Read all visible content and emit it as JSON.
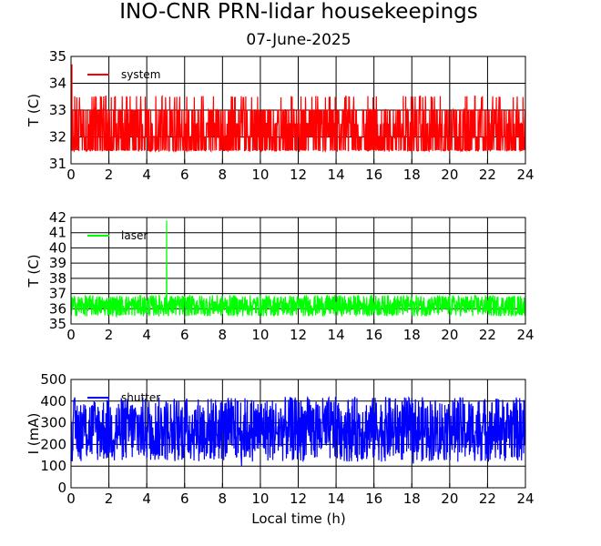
{
  "page": {
    "title": "INO-CNR PRN-lidar housekeepings",
    "subtitle": "07-June-2025",
    "xlabel": "Local time (h)"
  },
  "chart_data": [
    {
      "type": "line",
      "ylabel": "T (C)",
      "xlim": [
        0,
        24
      ],
      "ylim": [
        31,
        35
      ],
      "xticks": [
        "0",
        "2",
        "4",
        "6",
        "8",
        "10",
        "12",
        "14",
        "16",
        "18",
        "20",
        "22",
        "24"
      ],
      "yticks": [
        "31",
        "32",
        "33",
        "34",
        "35"
      ],
      "grid": true,
      "legend": "top-left",
      "series": [
        {
          "name": "system",
          "color": "#ff0000",
          "base_band": [
            31.5,
            32.5
          ],
          "high_band": [
            32.5,
            33.0
          ],
          "peak_band": [
            33.0,
            33.6
          ],
          "outlier": {
            "x": 0.05,
            "y": 34.7
          },
          "values": [
            {
              "x": 0,
              "y": 32.0
            },
            {
              "x": 2,
              "y": 32.0
            },
            {
              "x": 4,
              "y": 32.0
            },
            {
              "x": 6,
              "y": 32.0
            },
            {
              "x": 8,
              "y": 32.0
            },
            {
              "x": 10,
              "y": 32.0
            },
            {
              "x": 12,
              "y": 32.0
            },
            {
              "x": 14,
              "y": 32.0
            },
            {
              "x": 16,
              "y": 32.0
            },
            {
              "x": 18,
              "y": 32.0
            },
            {
              "x": 20,
              "y": 32.0
            },
            {
              "x": 22,
              "y": 32.0
            },
            {
              "x": 24,
              "y": 32.0
            }
          ]
        }
      ]
    },
    {
      "type": "line",
      "ylabel": "T (C)",
      "xlim": [
        0,
        24
      ],
      "ylim": [
        35,
        42
      ],
      "xticks": [
        "0",
        "2",
        "4",
        "6",
        "8",
        "10",
        "12",
        "14",
        "16",
        "18",
        "20",
        "22",
        "24"
      ],
      "yticks": [
        "35",
        "36",
        "37",
        "38",
        "39",
        "40",
        "41",
        "42"
      ],
      "grid": true,
      "legend": "top-left",
      "series": [
        {
          "name": "laser",
          "color": "#00ff00",
          "band": [
            35.5,
            36.9
          ],
          "spike": {
            "x": 5.05,
            "y": 41.8
          },
          "values": [
            {
              "x": 0,
              "y": 36.2
            },
            {
              "x": 2,
              "y": 36.2
            },
            {
              "x": 4,
              "y": 36.2
            },
            {
              "x": 5.05,
              "y": 41.8
            },
            {
              "x": 6,
              "y": 36.2
            },
            {
              "x": 8,
              "y": 36.2
            },
            {
              "x": 10,
              "y": 36.2
            },
            {
              "x": 12,
              "y": 36.2
            },
            {
              "x": 14,
              "y": 36.2
            },
            {
              "x": 16,
              "y": 36.2
            },
            {
              "x": 18,
              "y": 36.2
            },
            {
              "x": 20,
              "y": 36.2
            },
            {
              "x": 22,
              "y": 36.2
            },
            {
              "x": 24,
              "y": 36.2
            }
          ]
        }
      ]
    },
    {
      "type": "line",
      "ylabel": "I (mA)",
      "xlim": [
        0,
        24
      ],
      "ylim": [
        0,
        500
      ],
      "xticks": [
        "0",
        "2",
        "4",
        "6",
        "8",
        "10",
        "12",
        "14",
        "16",
        "18",
        "20",
        "22",
        "24"
      ],
      "yticks": [
        "0",
        "100",
        "200",
        "300",
        "400",
        "500"
      ],
      "grid": true,
      "legend": "top-left",
      "series": [
        {
          "name": "shutter",
          "color": "#0000ff",
          "band": [
            120,
            420
          ],
          "values": [
            {
              "x": 0,
              "y": 270
            },
            {
              "x": 2,
              "y": 270
            },
            {
              "x": 4,
              "y": 270
            },
            {
              "x": 6,
              "y": 270
            },
            {
              "x": 8,
              "y": 270
            },
            {
              "x": 10,
              "y": 270
            },
            {
              "x": 12,
              "y": 270
            },
            {
              "x": 14,
              "y": 270
            },
            {
              "x": 16,
              "y": 270
            },
            {
              "x": 18,
              "y": 270
            },
            {
              "x": 20,
              "y": 270
            },
            {
              "x": 22,
              "y": 270
            },
            {
              "x": 24,
              "y": 270
            }
          ]
        }
      ]
    }
  ]
}
